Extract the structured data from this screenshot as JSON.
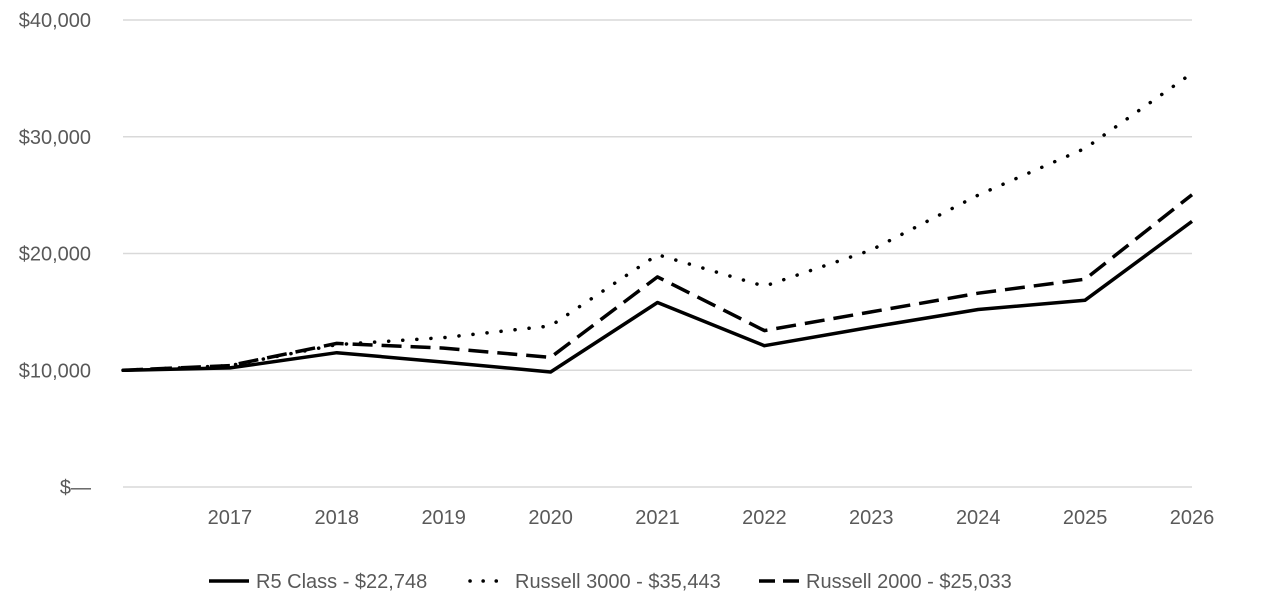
{
  "chart_data": {
    "type": "line",
    "title": "",
    "xlabel": "",
    "ylabel": "",
    "x": [
      "2016",
      "2017",
      "2018",
      "2019",
      "2020",
      "2021",
      "2022",
      "2023",
      "2024",
      "2025",
      "2026"
    ],
    "x_tick_labels": [
      "2017",
      "2018",
      "2019",
      "2020",
      "2021",
      "2022",
      "2023",
      "2024",
      "2025",
      "2026"
    ],
    "ylim": [
      0,
      40000
    ],
    "y_ticks": [
      0,
      10000,
      20000,
      30000,
      40000
    ],
    "y_tick_labels": [
      "$—",
      "$10,000",
      "$20,000",
      "$30,000",
      "$40,000"
    ],
    "grid": true,
    "legend_position": "bottom",
    "series": [
      {
        "name": "R5 Class - $22,748",
        "style": "solid",
        "color": "#000000",
        "values": [
          10000,
          10200,
          11500,
          10700,
          9850,
          15800,
          12100,
          13700,
          15200,
          16000,
          22748
        ]
      },
      {
        "name": "Russell 3000 - $35,443",
        "style": "dotted",
        "color": "#000000",
        "values": [
          10000,
          10400,
          12200,
          12800,
          13800,
          19900,
          17200,
          20300,
          25000,
          29000,
          35443
        ]
      },
      {
        "name": "Russell 2000 - $25,033",
        "style": "dashed",
        "color": "#000000",
        "values": [
          10000,
          10400,
          12300,
          11900,
          11100,
          18000,
          13400,
          15000,
          16600,
          17800,
          25033
        ]
      }
    ]
  }
}
